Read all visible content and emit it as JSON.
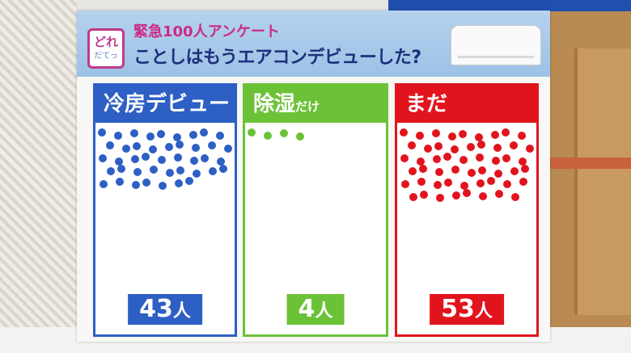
{
  "board": {
    "logo": {
      "main": "どれ",
      "sub": "だてっ"
    },
    "sub_title": "緊急100人アンケート",
    "title": "ことしはもうエアコンデビューした?"
  },
  "panels": [
    {
      "label": "冷房デビュー",
      "label_small": "",
      "count": "43",
      "unit": "人",
      "color": "#2d5fc4",
      "dots": 43
    },
    {
      "label": "除湿",
      "label_small": "だけ",
      "count": "4",
      "unit": "人",
      "color": "#6cc237",
      "dots": 4
    },
    {
      "label": "まだ",
      "label_small": "",
      "count": "53",
      "unit": "人",
      "color": "#e1141e",
      "dots": 53
    }
  ]
}
